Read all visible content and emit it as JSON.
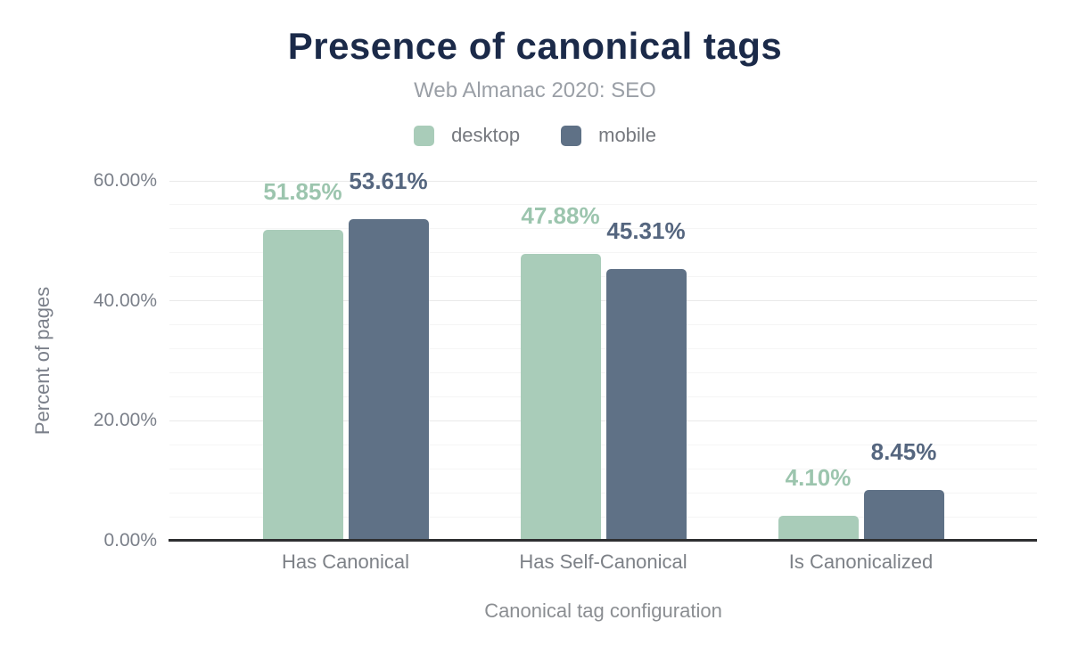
{
  "title": "Presence of canonical tags",
  "subtitle": "Web Almanac 2020: SEO",
  "legend": [
    {
      "label": "desktop",
      "color": "#a9ccb9"
    },
    {
      "label": "mobile",
      "color": "#5f7186"
    }
  ],
  "chart_data": {
    "type": "bar",
    "title": "Presence of canonical tags",
    "subtitle": "Web Almanac 2020: SEO",
    "categories": [
      "Has Canonical",
      "Has Self-Canonical",
      "Is Canonicalized"
    ],
    "series": [
      {
        "name": "desktop",
        "color": "#a9ccb9",
        "label_color": "#9cc5ae",
        "values": [
          51.85,
          47.88,
          4.1
        ],
        "labels": [
          "51.85%",
          "47.88%",
          "4.10%"
        ]
      },
      {
        "name": "mobile",
        "color": "#5f7186",
        "label_color": "#55667f",
        "values": [
          53.61,
          45.31,
          8.45
        ],
        "labels": [
          "53.61%",
          "45.31%",
          "8.45%"
        ]
      }
    ],
    "xlabel": "Canonical tag configuration",
    "ylabel": "Percent of pages",
    "ylim": [
      0,
      60
    ],
    "yticks": [
      {
        "value": 0,
        "label": "0.00%"
      },
      {
        "value": 20,
        "label": "20.00%"
      },
      {
        "value": 40,
        "label": "40.00%"
      },
      {
        "value": 60,
        "label": "60.00%"
      }
    ],
    "minor_grid_step": 4,
    "major_grid_step": 20,
    "grid": true,
    "legend_position": "top"
  },
  "colors": {
    "title": "#1b2a49",
    "subtitle": "#9a9fa6",
    "axis_text": "#7b808a",
    "axis_line": "#2e2f31",
    "grid_major": "#e9e9e9",
    "grid_minor": "#f5f5f5",
    "background": "#ffffff"
  }
}
